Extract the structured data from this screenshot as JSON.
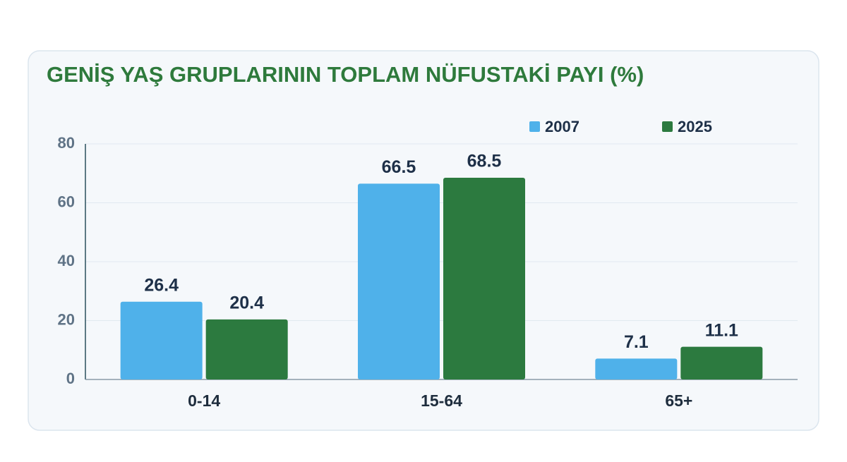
{
  "chart_data": {
    "type": "bar",
    "title": "GENİŞ YAŞ GRUPLARININ TOPLAM NÜFUSTAKİ PAYI (%)",
    "categories": [
      "0-14",
      "15-64",
      "65+"
    ],
    "series": [
      {
        "name": "2007",
        "color": "#4fb1ea",
        "values": [
          26.4,
          66.5,
          7.1
        ]
      },
      {
        "name": "2025",
        "color": "#2c7a3f",
        "values": [
          20.4,
          68.5,
          11.1
        ]
      }
    ],
    "ylim": [
      0,
      80
    ],
    "yticks": [
      0,
      20,
      40,
      60,
      80
    ],
    "grid": true,
    "legend": "top-right"
  }
}
